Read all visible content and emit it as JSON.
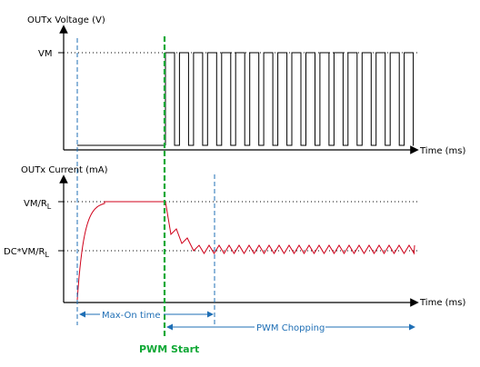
{
  "top_chart": {
    "ylabel": "OUTx Voltage (V)",
    "level_label": "VM",
    "xlabel": "Time (ms)"
  },
  "bottom_chart": {
    "ylabel": "OUTx Current (mA)",
    "level_high_label": "VM/R",
    "level_high_sub": "L",
    "level_low_label": "DC*VM/R",
    "level_low_sub": "L",
    "xlabel": "Time (ms)"
  },
  "annotations": {
    "max_on": "Max-On time",
    "pwm_chopping": "PWM Chopping",
    "pwm_start": "PWM Start"
  },
  "colors": {
    "axis": "#000000",
    "current_trace": "#d0021b",
    "marker_blue": "#1f6fb5",
    "pwm_start_green": "#11a836"
  }
}
